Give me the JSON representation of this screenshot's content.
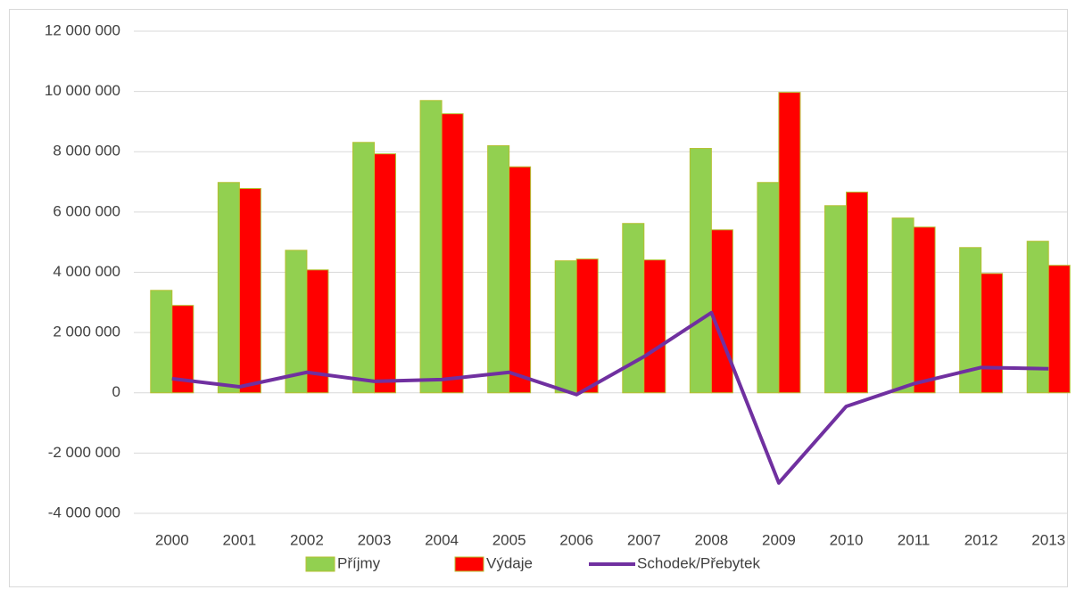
{
  "chart_data": {
    "type": "bar",
    "categories": [
      "2000",
      "2001",
      "2002",
      "2003",
      "2004",
      "2005",
      "2006",
      "2007",
      "2008",
      "2009",
      "2010",
      "2011",
      "2012",
      "2013"
    ],
    "series": [
      {
        "name": "Příjmy",
        "color": "#92d050",
        "type": "bar",
        "values": [
          3400000,
          6980000,
          4730000,
          8310000,
          9700000,
          8200000,
          4380000,
          5620000,
          8110000,
          6980000,
          6210000,
          5800000,
          4820000,
          5030000
        ]
      },
      {
        "name": "Výdaje",
        "color": "#ff0000",
        "type": "bar",
        "values": [
          2900000,
          6780000,
          4080000,
          7930000,
          9260000,
          7500000,
          4440000,
          4410000,
          5410000,
          9970000,
          6660000,
          5500000,
          3960000,
          4230000
        ]
      },
      {
        "name": "Schodek/Přebytek",
        "color": "#7030a0",
        "type": "line",
        "values": [
          470000,
          200000,
          680000,
          380000,
          440000,
          680000,
          -60000,
          1200000,
          2660000,
          -2990000,
          -450000,
          300000,
          840000,
          800000
        ]
      }
    ],
    "ylim": [
      -4000000,
      12000000
    ],
    "yticks": [
      {
        "value": -4000000,
        "label": "-4 000 000"
      },
      {
        "value": -2000000,
        "label": "-2 000 000"
      },
      0,
      {
        "value": 2000000,
        "label": "2 000 000"
      },
      {
        "value": 4000000,
        "label": "4 000 000"
      },
      {
        "value": 6000000,
        "label": "6 000 000"
      },
      {
        "value": 8000000,
        "label": "8 000 000"
      },
      {
        "value": 10000000,
        "label": "10 000 000"
      },
      {
        "value": 12000000,
        "label": "12 000 000"
      }
    ],
    "grid": true,
    "legend": "bottom"
  }
}
